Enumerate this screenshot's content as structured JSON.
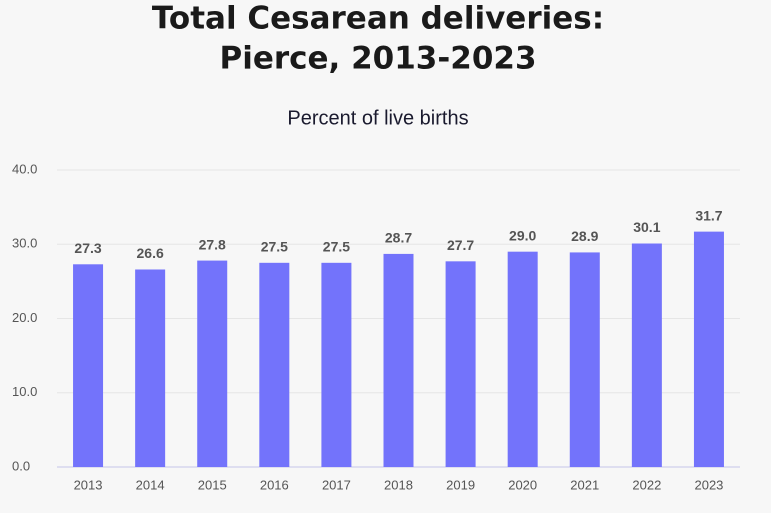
{
  "chart_data": {
    "type": "bar",
    "title": [
      "Total Cesarean deliveries:",
      "Pierce, 2013-2023"
    ],
    "subtitle": "Percent of live births",
    "categories": [
      "2013",
      "2014",
      "2015",
      "2016",
      "2017",
      "2018",
      "2019",
      "2020",
      "2021",
      "2022",
      "2023"
    ],
    "values": [
      27.3,
      26.6,
      27.8,
      27.5,
      27.5,
      28.7,
      27.7,
      29.0,
      28.9,
      30.1,
      31.7
    ],
    "value_labels": [
      "27.3",
      "26.6",
      "27.8",
      "27.5",
      "27.5",
      "28.7",
      "27.7",
      "29.0",
      "28.9",
      "30.1",
      "31.7"
    ],
    "color": "#7373fb",
    "ylim": [
      0,
      40
    ],
    "yticks": [
      {
        "value": 0,
        "label": "0.0"
      },
      {
        "value": 10,
        "label": "10.0"
      },
      {
        "value": 20,
        "label": "20.0"
      },
      {
        "value": 30,
        "label": "30.0"
      },
      {
        "value": 40,
        "label": "40.0"
      }
    ],
    "grid": true
  }
}
